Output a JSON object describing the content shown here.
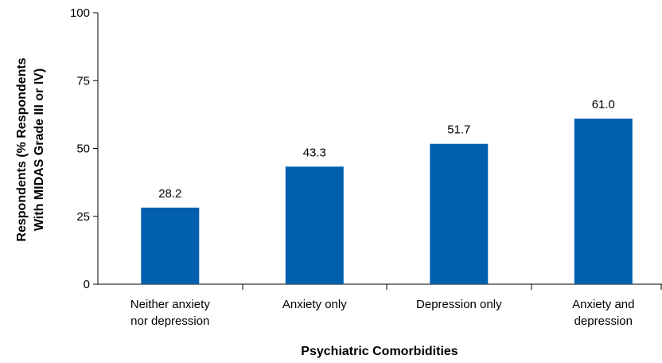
{
  "chart_data": {
    "type": "bar",
    "categories": [
      [
        "Neither anxiety",
        "nor depression"
      ],
      [
        "Anxiety only"
      ],
      [
        "Depression only"
      ],
      [
        "Anxiety and",
        "depression"
      ]
    ],
    "values": [
      28.2,
      43.3,
      51.7,
      61.0
    ],
    "value_labels": [
      "28.2",
      "43.3",
      "51.7",
      "61.0"
    ],
    "xlabel": "Psychiatric Comorbidities",
    "ylabel_lines": [
      "Respondents (% Respondents",
      "With MIDAS Grade III or IV)"
    ],
    "ylim": [
      0,
      100
    ],
    "yticks": [
      0,
      25,
      50,
      75,
      100
    ],
    "ytick_labels": [
      "0",
      "25",
      "50",
      "75",
      "100"
    ],
    "bar_color": "#0060ae",
    "grid": false,
    "legend": "none"
  }
}
